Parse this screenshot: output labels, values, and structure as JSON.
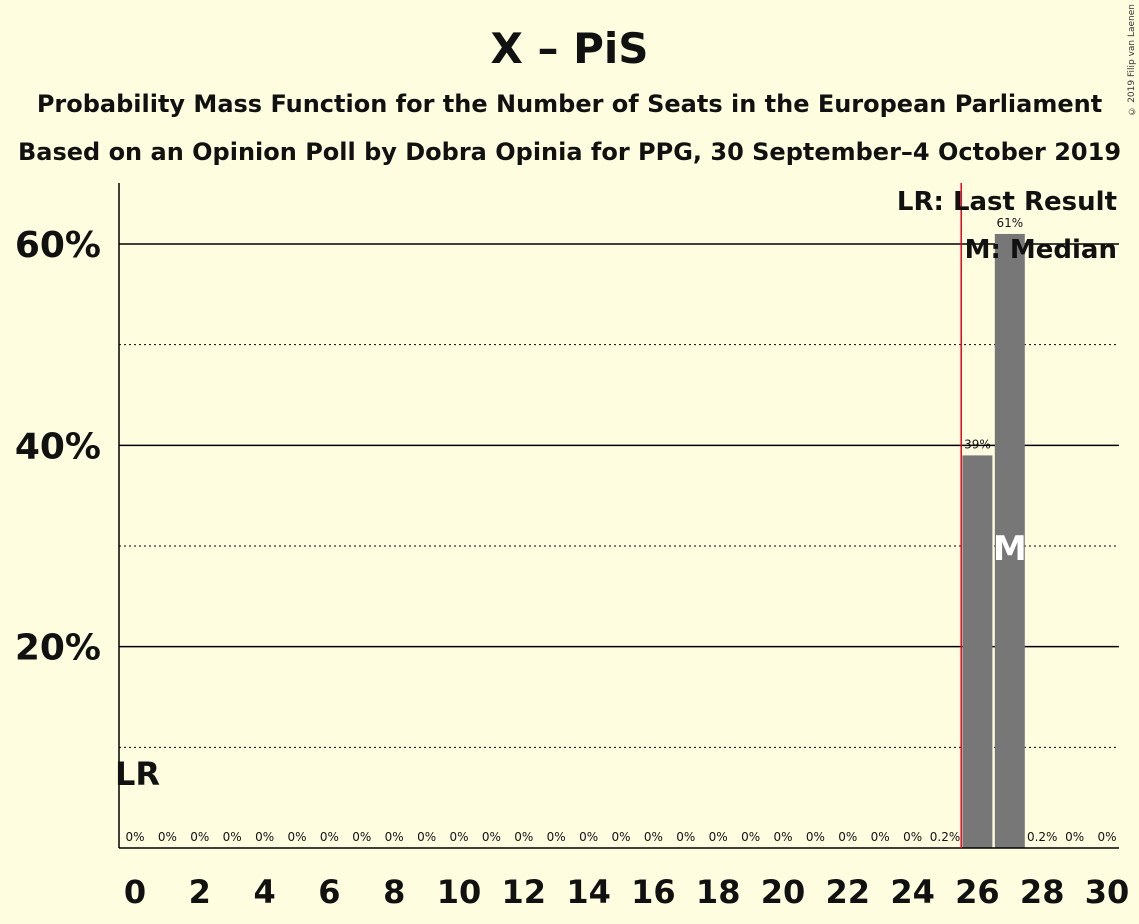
{
  "title": "X – PiS",
  "subtitle": "Probability Mass Function for the Number of Seats in the European Parliament",
  "subtitle2": "Based on an Opinion Poll by Dobra Opinia for PPG, 30 September–4 October 2019",
  "copyright": "© 2019 Filip van Laenen",
  "legend": {
    "last_result": "LR: Last Result",
    "median": "M: Median"
  },
  "markers": {
    "last_result_label": "LR",
    "median_label": "M"
  },
  "colors": {
    "background": "#fffde0",
    "bar": "#777777",
    "last_result_line": "#e8001e",
    "axis": "#000000"
  },
  "chart_data": {
    "type": "bar",
    "x": [
      0,
      1,
      2,
      3,
      4,
      5,
      6,
      7,
      8,
      9,
      10,
      11,
      12,
      13,
      14,
      15,
      16,
      17,
      18,
      19,
      20,
      21,
      22,
      23,
      24,
      25,
      26,
      27,
      28,
      29,
      30
    ],
    "values": [
      0,
      0,
      0,
      0,
      0,
      0,
      0,
      0,
      0,
      0,
      0,
      0,
      0,
      0,
      0,
      0,
      0,
      0,
      0,
      0,
      0,
      0,
      0,
      0,
      0,
      0.2,
      39,
      61,
      0.2,
      0,
      0
    ],
    "data_labels": [
      "0%",
      "0%",
      "0%",
      "0%",
      "0%",
      "0%",
      "0%",
      "0%",
      "0%",
      "0%",
      "0%",
      "0%",
      "0%",
      "0%",
      "0%",
      "0%",
      "0%",
      "0%",
      "0%",
      "0%",
      "0%",
      "0%",
      "0%",
      "0%",
      "0%",
      "0.2%",
      "39%",
      "61%",
      "0.2%",
      "0%",
      "0%"
    ],
    "xticks": [
      0,
      2,
      4,
      6,
      8,
      10,
      12,
      14,
      16,
      18,
      20,
      22,
      24,
      26,
      28,
      30
    ],
    "yticks": [
      20,
      40,
      60
    ],
    "ytick_labels": [
      "20%",
      "40%",
      "60%"
    ],
    "minor_gridlines": [
      10,
      30,
      50
    ],
    "ylim": [
      0,
      66
    ],
    "xlim": [
      0,
      30
    ],
    "last_result": 25.5,
    "last_result_label_x": 0,
    "median": 27,
    "legend_placement": "top-right"
  }
}
